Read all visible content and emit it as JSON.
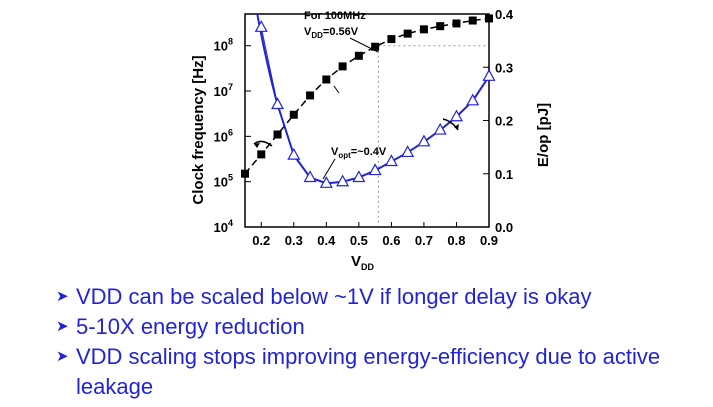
{
  "chart_data": {
    "type": "line",
    "xlabel_main": "V",
    "xlabel_sub": "DD",
    "ylabel_left": "Clock frequency [Hz]",
    "ylabel_right": "E/op [pJ]",
    "xlim": [
      0.15,
      0.9
    ],
    "x_ticks": [
      "0.2",
      "0.3",
      "0.4",
      "0.5",
      "0.6",
      "0.7",
      "0.8",
      "0.9"
    ],
    "y_left_scale": "log",
    "y_left_lim_exp": [
      4,
      8.7
    ],
    "y_left_ticks": [
      {
        "base": "10",
        "exp": "4"
      },
      {
        "base": "10",
        "exp": "5"
      },
      {
        "base": "10",
        "exp": "6"
      },
      {
        "base": "10",
        "exp": "7"
      },
      {
        "base": "10",
        "exp": "8"
      }
    ],
    "y_right_lim": [
      0.0,
      0.4
    ],
    "y_right_ticks": [
      "0.0",
      "0.1",
      "0.2",
      "0.3",
      "0.4"
    ],
    "series": [
      {
        "axis": "left",
        "marker": "filled-square",
        "color": "#000000",
        "points": [
          {
            "x": 0.15,
            "y": 150000
          },
          {
            "x": 0.2,
            "y": 400000
          },
          {
            "x": 0.25,
            "y": 1100000
          },
          {
            "x": 0.3,
            "y": 3000000
          },
          {
            "x": 0.35,
            "y": 8000000
          },
          {
            "x": 0.4,
            "y": 18000000
          },
          {
            "x": 0.45,
            "y": 35000000
          },
          {
            "x": 0.5,
            "y": 60000000
          },
          {
            "x": 0.55,
            "y": 95000000
          },
          {
            "x": 0.6,
            "y": 140000000
          },
          {
            "x": 0.65,
            "y": 185000000
          },
          {
            "x": 0.7,
            "y": 230000000
          },
          {
            "x": 0.75,
            "y": 270000000
          },
          {
            "x": 0.8,
            "y": 310000000
          },
          {
            "x": 0.85,
            "y": 360000000
          },
          {
            "x": 0.9,
            "y": 400000000
          }
        ]
      },
      {
        "axis": "right",
        "marker": "open-triangle",
        "color": "#2323d6",
        "points": [
          {
            "x": 0.2,
            "y": 0.375
          },
          {
            "x": 0.25,
            "y": 0.23
          },
          {
            "x": 0.3,
            "y": 0.135
          },
          {
            "x": 0.35,
            "y": 0.093
          },
          {
            "x": 0.4,
            "y": 0.082
          },
          {
            "x": 0.45,
            "y": 0.085
          },
          {
            "x": 0.5,
            "y": 0.093
          },
          {
            "x": 0.55,
            "y": 0.106
          },
          {
            "x": 0.6,
            "y": 0.123
          },
          {
            "x": 0.65,
            "y": 0.14
          },
          {
            "x": 0.7,
            "y": 0.16
          },
          {
            "x": 0.75,
            "y": 0.182
          },
          {
            "x": 0.8,
            "y": 0.207
          },
          {
            "x": 0.85,
            "y": 0.237
          },
          {
            "x": 0.9,
            "y": 0.283
          }
        ]
      }
    ],
    "annotations": {
      "for_line1": "For 100MHz",
      "for_v": "V",
      "for_sub": "DD",
      "for_val": "=0.56V",
      "vopt_v": "V",
      "vopt_sub": "opt",
      "vopt_val": "=~0.4V"
    },
    "reference_point": {
      "x": 0.56,
      "y_left": 100000000
    }
  },
  "bullets": [
    "VDD can be scaled below ~1V if longer delay is okay",
    "5-10X energy reduction",
    "VDD scaling stops improving energy-efficiency due to active leakage"
  ],
  "colors": {
    "text": "#2323d6",
    "energy_series": "#2323d6",
    "frequency_series": "#000000"
  }
}
